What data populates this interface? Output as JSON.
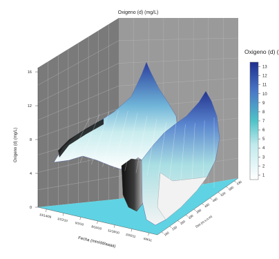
{
  "chart_data": {
    "type": "surface",
    "title": "Oxigeno (d) (mg/L)",
    "ylabel": "Oxigeno (d) (mg/L)",
    "xlabel": "Fecha (mm/dd/aaaa)",
    "depth_label": "Dist (m.s.n.m)",
    "zlim": [
      0,
      16
    ],
    "z_ticks": [
      "0",
      "4",
      "8",
      "12",
      "16"
    ],
    "date_ticks": [
      "10/14/09",
      "1/22/10",
      "5/2/10",
      "8/10/10",
      "11/18/10",
      "2/26/11",
      "6/6/11"
    ],
    "depth_ticks": [
      "180",
      "230",
      "280",
      "330",
      "380",
      "430",
      "480",
      "530",
      "580",
      "630"
    ],
    "legend_title": "Oxigeno (d) (mg/L)",
    "legend_ticks": [
      "13",
      "12",
      "11",
      "10",
      "9",
      "8",
      "7",
      "6",
      "5",
      "4",
      "3",
      "2",
      "1"
    ],
    "grid": true,
    "colors": {
      "floor": "#5fd3e3",
      "back_wall": "#9a9a9a",
      "side_wall": "#6e6e6e",
      "low": "#ffffff",
      "mid": "#4fc3c8",
      "high": "#1f2f8f"
    }
  }
}
